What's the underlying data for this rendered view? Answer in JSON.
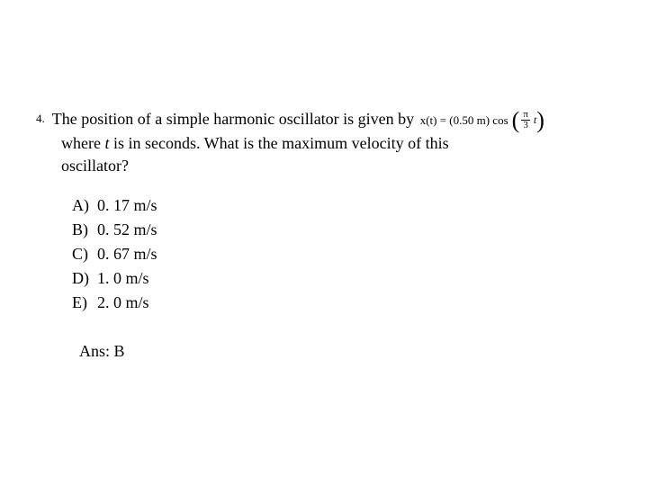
{
  "question": {
    "number": "4.",
    "line1": "The position of a simple harmonic oscillator is given by",
    "equation": {
      "prefix": "x(t) = (0.50 m) cos",
      "frac_num": "π",
      "frac_den": "3",
      "suffix_var": "t"
    },
    "line2a": "where ",
    "line2_italic": "t",
    "line2b": " is in seconds.  What is the maximum velocity of this",
    "line3": "oscillator?"
  },
  "options": [
    {
      "label": "A)",
      "text": "0. 17 m/s"
    },
    {
      "label": "B)",
      "text": "0. 52 m/s"
    },
    {
      "label": "C)",
      "text": "0. 67 m/s"
    },
    {
      "label": "D)",
      "text": "1. 0 m/s"
    },
    {
      "label": "E)",
      "text": "2. 0 m/s"
    }
  ],
  "answer": {
    "label": "Ans:  ",
    "value": "B"
  }
}
